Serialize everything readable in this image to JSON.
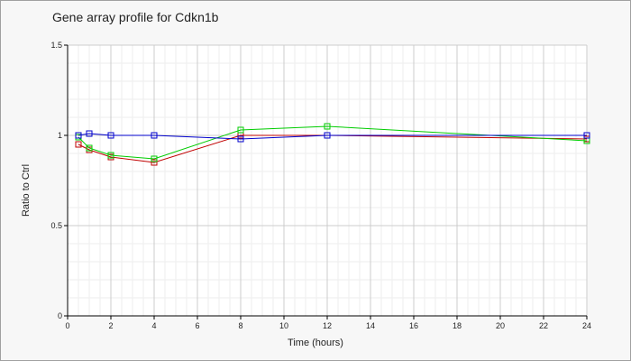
{
  "chart_data": {
    "type": "line",
    "title": "Gene array profile for Cdkn1b",
    "xlabel": "Time (hours)",
    "ylabel": "Ratio to Ctrl",
    "xlim": [
      0,
      24
    ],
    "ylim": [
      0,
      1.5
    ],
    "xticks": [
      "0",
      "2",
      "4",
      "6",
      "8",
      "10",
      "12",
      "14",
      "16",
      "18",
      "20",
      "22",
      "24"
    ],
    "yticks": [
      "0",
      "0.5",
      "1",
      "1.5"
    ],
    "grid": true,
    "series": [
      {
        "color": "#c00000",
        "x": [
          0.5,
          1,
          2,
          4,
          8,
          12,
          24
        ],
        "y": [
          0.95,
          0.92,
          0.88,
          0.85,
          1.0,
          1.0,
          0.98
        ]
      },
      {
        "color": "#00cc00",
        "x": [
          0.5,
          1,
          2,
          4,
          8,
          12,
          24
        ],
        "y": [
          0.99,
          0.93,
          0.89,
          0.87,
          1.03,
          1.05,
          0.97
        ]
      },
      {
        "color": "#0000cc",
        "x": [
          0.5,
          1,
          2,
          4,
          8,
          12,
          24
        ],
        "y": [
          1.0,
          1.01,
          1.0,
          1.0,
          0.98,
          1.0,
          1.0
        ]
      }
    ]
  }
}
